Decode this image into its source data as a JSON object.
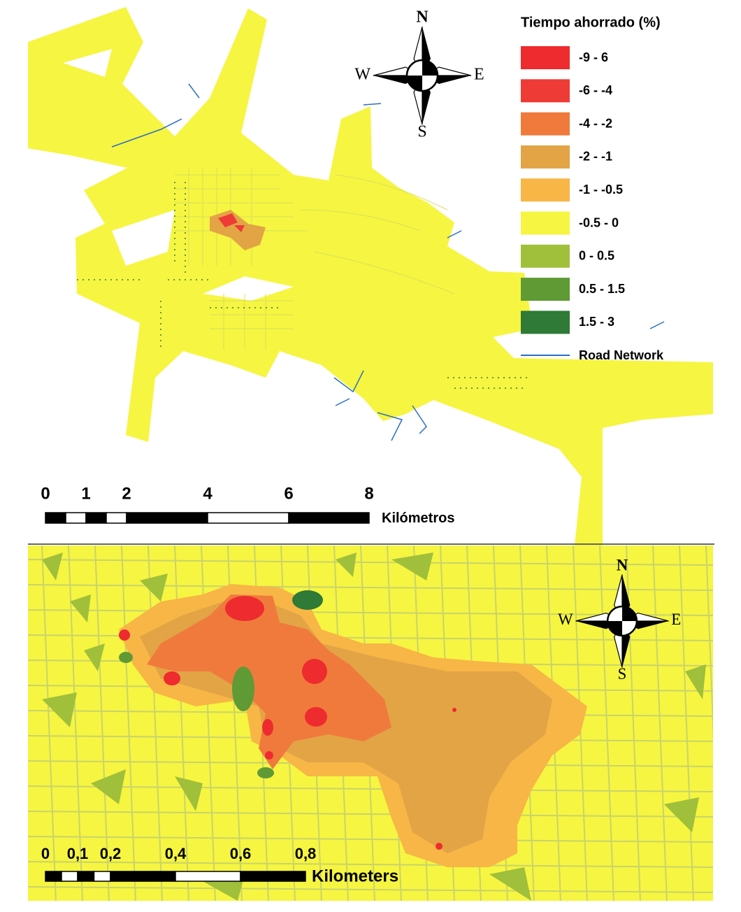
{
  "top_map": {
    "legend": {
      "title": "Tiempo ahorrado (%)",
      "items": [
        {
          "label": "-9 - 6",
          "color": "#ee2b2e"
        },
        {
          "label": "-6 - -4",
          "color": "#ef3b36"
        },
        {
          "label": "-4 - -2",
          "color": "#f07a3c"
        },
        {
          "label": "-2 - -1",
          "color": "#e2a445"
        },
        {
          "label": "-1 - -0.5",
          "color": "#f7b646"
        },
        {
          "label": "-0.5 - 0",
          "color": "#f6f541"
        },
        {
          "label": "0 - 0.5",
          "color": "#a0bf3b"
        },
        {
          "label": "0.5 - 1.5",
          "color": "#5f9a35"
        },
        {
          "label": "1.5 - 3",
          "color": "#2e7a36"
        }
      ],
      "road_network": {
        "label": "Road Network",
        "color": "#2a6fc1"
      }
    },
    "compass": {
      "n": "N",
      "w": "W",
      "e": "E",
      "s": "S"
    },
    "scale_bar": {
      "ticks": [
        "0",
        "1",
        "2",
        "4",
        "6",
        "8"
      ],
      "unit": "Kilómetros"
    }
  },
  "bottom_map": {
    "compass": {
      "n": "N",
      "w": "W",
      "e": "E",
      "s": "S"
    },
    "scale_bar": {
      "ticks": [
        "0",
        "0,1",
        "0,2",
        "0,4",
        "0,6",
        "0,8"
      ],
      "unit": "Kilometers"
    }
  }
}
